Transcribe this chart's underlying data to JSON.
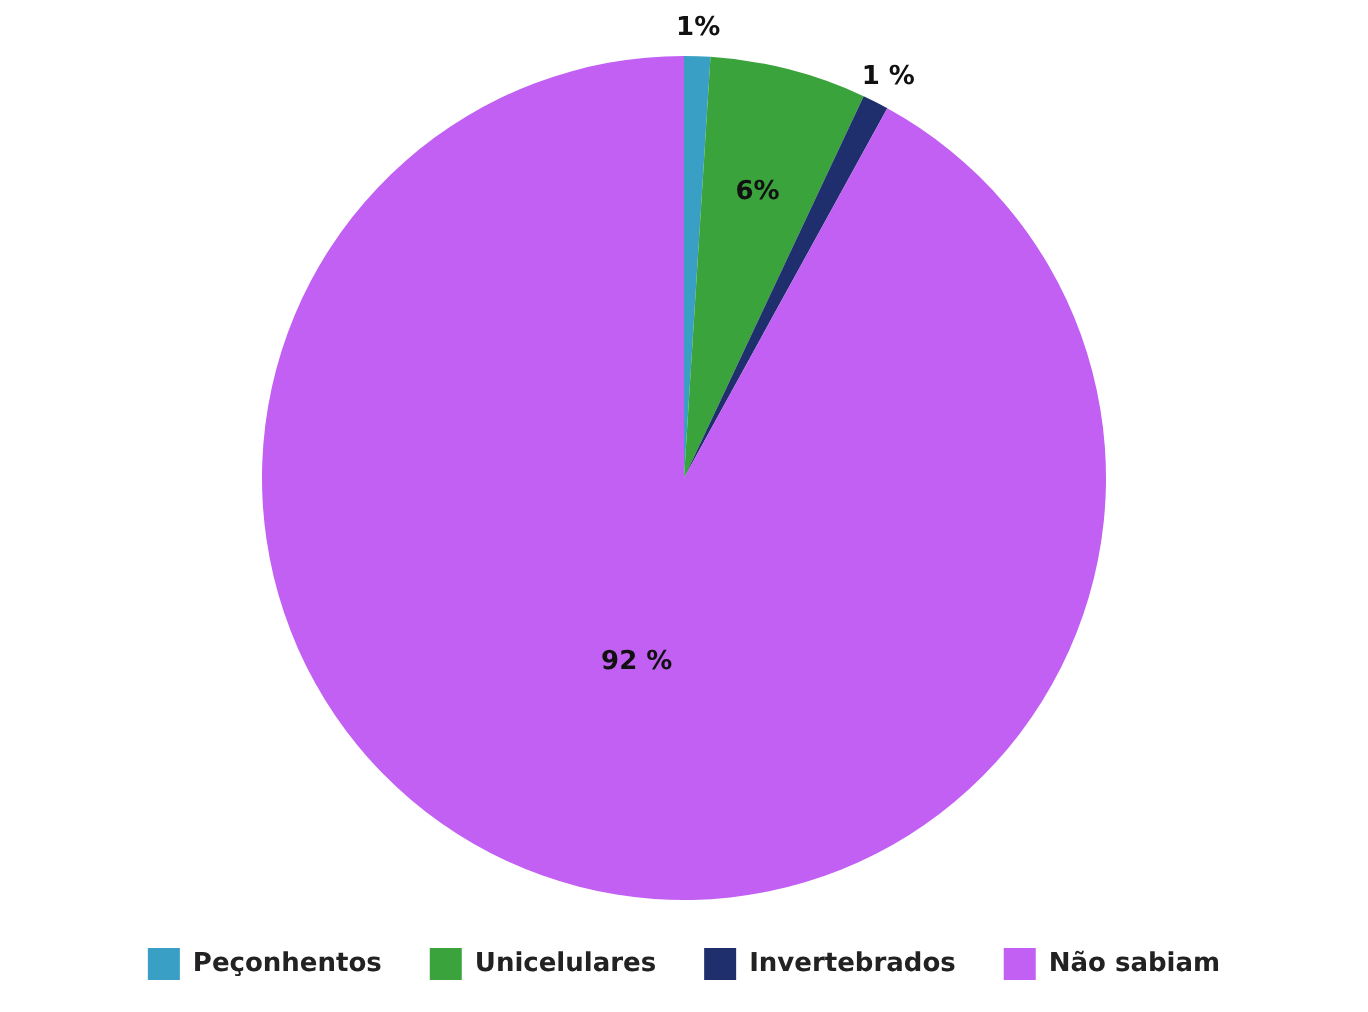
{
  "chart_data": {
    "type": "pie",
    "categories": [
      "Peçonhentos",
      "Unicelulares",
      "Invertebrados",
      "Não sabiam"
    ],
    "values": [
      1,
      6,
      1,
      92
    ],
    "colors": [
      "#3a9fc4",
      "#3aa33c",
      "#1f2f6e",
      "#c160f2"
    ],
    "value_labels": [
      "1%",
      "6%",
      "1 %",
      "92 %"
    ],
    "legend": "bottom"
  }
}
